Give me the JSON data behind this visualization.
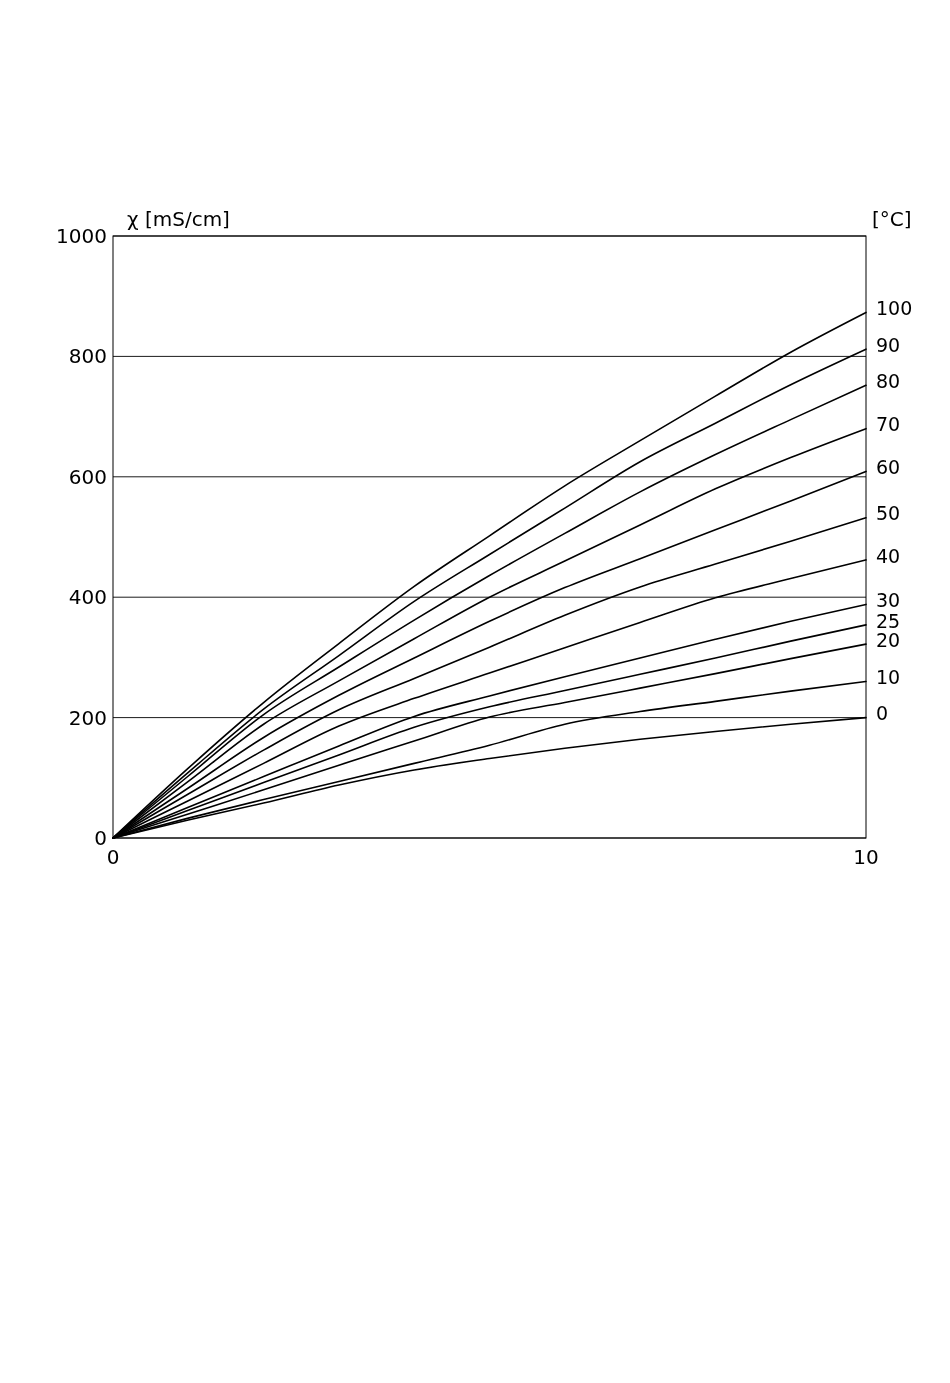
{
  "chart_data": {
    "type": "line",
    "ylabel": "χ [mS/cm]",
    "legend_title": "[°C]",
    "x": [
      0,
      1,
      2,
      3,
      4,
      5,
      6,
      7,
      8,
      9,
      10
    ],
    "xlim": [
      0,
      10
    ],
    "xticks": [
      0,
      10
    ],
    "ylim": [
      0,
      1000
    ],
    "yticks": [
      0,
      200,
      400,
      600,
      800,
      1000
    ],
    "grid": "y",
    "legend": "right",
    "series": [
      {
        "name": "100",
        "color": "#000000",
        "values": [
          0,
          116,
          225,
          323,
          418,
          502,
          585,
          660,
          734,
          807,
          873
        ]
      },
      {
        "name": "90",
        "color": "#000000",
        "values": [
          0,
          109,
          214,
          303,
          393,
          471,
          548,
          625,
          689,
          753,
          812
        ]
      },
      {
        "name": "80",
        "color": "#000000",
        "values": [
          0,
          103,
          205,
          284,
          362,
          436,
          506,
          575,
          637,
          695,
          752
        ]
      },
      {
        "name": "70",
        "color": "#000000",
        "values": [
          0,
          94,
          189,
          261,
          331,
          400,
          460,
          520,
          580,
          632,
          680
        ]
      },
      {
        "name": "60",
        "color": "#000000",
        "values": [
          0,
          83,
          167,
          237,
          299,
          360,
          416,
          464,
          512,
          560,
          609
        ]
      },
      {
        "name": "50",
        "color": "#000000",
        "values": [
          0,
          73,
          146,
          213,
          265,
          317,
          370,
          417,
          455,
          493,
          532
        ]
      },
      {
        "name": "40",
        "color": "#000000",
        "values": [
          0,
          62,
          124,
          186,
          232,
          274,
          316,
          358,
          399,
          431,
          462
        ]
      },
      {
        "name": "30",
        "color": "#000000",
        "values": [
          0,
          51,
          102,
          153,
          202,
          236,
          268,
          299,
          330,
          360,
          388
        ]
      },
      {
        "name": "25",
        "color": "#000000",
        "values": [
          0,
          46,
          92,
          138,
          184,
          218,
          245,
          272,
          299,
          327,
          354
        ]
      },
      {
        "name": "20",
        "color": "#000000",
        "values": [
          0,
          40,
          80,
          121,
          161,
          201,
          225,
          249,
          273,
          298,
          322
        ]
      },
      {
        "name": "10",
        "color": "#000000",
        "values": [
          0,
          33,
          64,
          94,
          124,
          154,
          189,
          210,
          227,
          244,
          260
        ]
      },
      {
        "name": "0",
        "color": "#000000",
        "values": [
          0,
          30,
          58,
          88,
          113,
          132,
          149,
          164,
          177,
          189,
          200
        ]
      }
    ]
  }
}
